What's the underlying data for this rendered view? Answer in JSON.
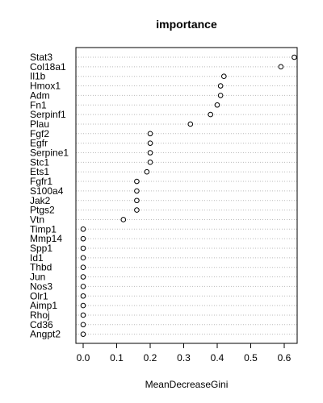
{
  "chart_data": {
    "type": "scatter",
    "title": "importance",
    "xlabel": "MeanDecreaseGini",
    "ylabel": "",
    "xlim": [
      -0.02,
      0.65
    ],
    "x_ticks": [
      "0.0",
      "0.1",
      "0.2",
      "0.3",
      "0.4",
      "0.5",
      "0.6"
    ],
    "x_tick_values": [
      0.0,
      0.1,
      0.2,
      0.3,
      0.4,
      0.5,
      0.6
    ],
    "grid": "dotted horizontal lines per variable",
    "categories": [
      "Stat3",
      "Col18a1",
      "Il1b",
      "Hmox1",
      "Adm",
      "Fn1",
      "Serpinf1",
      "Plau",
      "Fgf2",
      "Egfr",
      "Serpine1",
      "Stc1",
      "Ets1",
      "Fgfr1",
      "S100a4",
      "Jak2",
      "Ptgs2",
      "Vtn",
      "Timp1",
      "Mmp14",
      "Spp1",
      "Id1",
      "Thbd",
      "Jun",
      "Nos3",
      "Olr1",
      "Aimp1",
      "Rhoj",
      "Cd36",
      "Angpt2"
    ],
    "values": [
      0.63,
      0.59,
      0.42,
      0.41,
      0.41,
      0.4,
      0.38,
      0.32,
      0.2,
      0.2,
      0.2,
      0.2,
      0.19,
      0.16,
      0.16,
      0.16,
      0.16,
      0.12,
      0.0,
      0.0,
      0.0,
      0.0,
      0.0,
      0.0,
      0.0,
      0.0,
      0.0,
      0.0,
      0.0,
      0.0
    ]
  }
}
